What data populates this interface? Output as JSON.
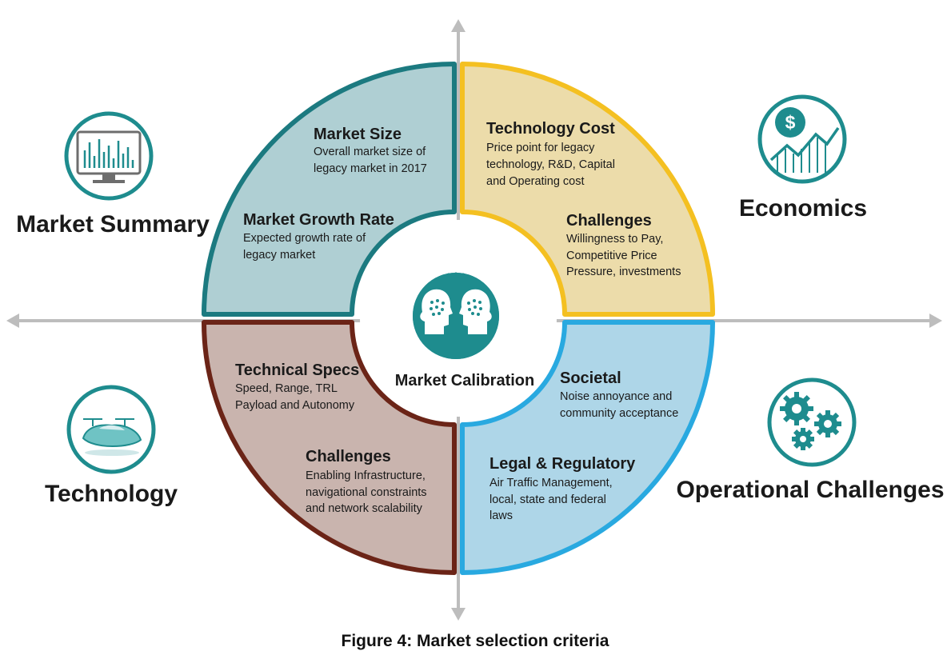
{
  "center": {
    "label": "Market Calibration"
  },
  "quadrants": {
    "market": {
      "color": "#1c7a80",
      "fill": "#afcfd3",
      "blocks": [
        {
          "heading": "Market Size",
          "lines": [
            "Overall market size of",
            "legacy market in 2017"
          ]
        },
        {
          "heading": "Market Growth Rate",
          "lines": [
            "Expected growth rate of",
            "legacy market"
          ]
        }
      ]
    },
    "economics": {
      "color": "#f4c021",
      "fill": "#ecdcaa",
      "blocks": [
        {
          "heading": "Technology Cost",
          "lines": [
            "Price point for legacy",
            "technology, R&D, Capital",
            "and Operating cost"
          ]
        },
        {
          "heading": "Challenges",
          "lines": [
            "Willingness to Pay,",
            "Competitive Price",
            "Pressure, investments"
          ]
        }
      ]
    },
    "technology": {
      "color": "#6b2417",
      "fill": "#c9b4ae",
      "blocks": [
        {
          "heading": "Technical Specs",
          "lines": [
            "Speed, Range, TRL",
            "Payload and Autonomy"
          ]
        },
        {
          "heading": "Challenges",
          "lines": [
            "Enabling Infrastructure,",
            "navigational constraints",
            "and network scalability"
          ]
        }
      ]
    },
    "operational": {
      "color": "#29a9e0",
      "fill": "#aed6e8",
      "blocks": [
        {
          "heading": "Societal",
          "lines": [
            "Noise annoyance and",
            "community acceptance"
          ]
        },
        {
          "heading": "Legal & Regulatory",
          "lines": [
            "Air Traffic Management,",
            "local, state and federal",
            "laws"
          ]
        }
      ]
    }
  },
  "categories": {
    "market_summary": {
      "label": "Market Summary",
      "icon": "monitor-chart-icon"
    },
    "economics": {
      "label": "Economics",
      "icon": "dollar-growth-icon"
    },
    "technology": {
      "label": "Technology",
      "icon": "flying-car-icon"
    },
    "operational_challenges": {
      "label": "Operational Challenges",
      "icon": "gears-icon"
    }
  },
  "icon_color": "#1e8c8e",
  "caption": "Figure 4: Market selection criteria"
}
